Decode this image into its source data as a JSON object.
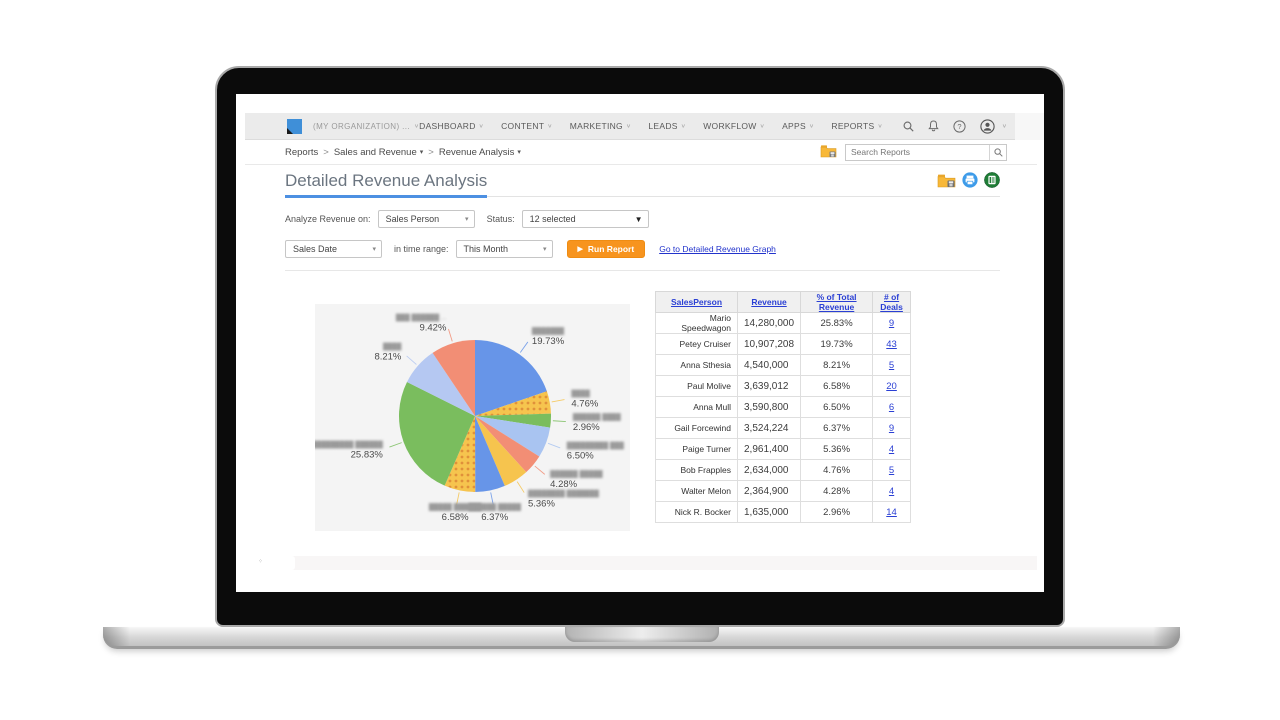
{
  "nav": {
    "org_label": "(MY ORGANIZATION) ...",
    "menu": [
      {
        "label": "DASHBOARD"
      },
      {
        "label": "CONTENT"
      },
      {
        "label": "MARKETING"
      },
      {
        "label": "LEADS"
      },
      {
        "label": "WORKFLOW"
      },
      {
        "label": "APPS"
      },
      {
        "label": "REPORTS"
      }
    ],
    "help_glyph": "?"
  },
  "breadcrumb": {
    "separator": ">",
    "items": [
      {
        "label": "Reports",
        "caret": false
      },
      {
        "label": "Sales and Revenue",
        "caret": true
      },
      {
        "label": "Revenue Analysis",
        "caret": true
      }
    ]
  },
  "search": {
    "placeholder": "Search Reports"
  },
  "page": {
    "title": "Detailed Revenue Analysis"
  },
  "filters": {
    "analyze_label": "Analyze Revenue on:",
    "analyze_value": "Sales Person",
    "status_label": "Status:",
    "status_value": "12 selected",
    "date_field_value": "Sales Date",
    "range_label": "in time range:",
    "range_value": "This Month",
    "run_button": "Run Report",
    "graph_link": "Go to Detailed Revenue Graph"
  },
  "chart_data": {
    "type": "pie",
    "unit": "%",
    "start_angle_deg": -90,
    "direction": "clockwise",
    "legend": "none",
    "slices": [
      {
        "label_blurred": "███████",
        "value": 19.73,
        "color": "#6795e8",
        "pattern": false
      },
      {
        "label_blurred": "████",
        "value": 4.76,
        "color": "#f6c44e",
        "pattern": true
      },
      {
        "label_blurred": "██████ ████",
        "value": 2.96,
        "color": "#7abd5e",
        "pattern": false
      },
      {
        "label_blurred": "█████████ ███",
        "value": 6.5,
        "color": "#a9c4f1",
        "pattern": false
      },
      {
        "label_blurred": "██████ █████",
        "value": 4.28,
        "color": "#f28e75",
        "pattern": false
      },
      {
        "label_blurred": "████████ ███████",
        "value": 5.36,
        "color": "#f6c44e",
        "pattern": false
      },
      {
        "label_blurred": "██████ █████",
        "value": 6.37,
        "color": "#6795e8",
        "pattern": false
      },
      {
        "label_blurred": "█████ ██████",
        "value": 6.58,
        "color": "#f6c44e",
        "pattern": true
      },
      {
        "label_blurred": "██████████ ██████",
        "value": 25.83,
        "color": "#7abd5e",
        "pattern": false
      },
      {
        "label_blurred": "████",
        "value": 8.21,
        "color": "#b5c8f2",
        "pattern": false
      },
      {
        "label_blurred": "███ ██████ ...",
        "value": 9.42,
        "color": "#f28e75",
        "pattern": false
      }
    ]
  },
  "table": {
    "headers": [
      "SalesPerson",
      "Revenue",
      "% of Total Revenue",
      "# of Deals"
    ],
    "rows": [
      [
        "Mario Speedwagon",
        "14,280,000",
        "25.83%",
        "9"
      ],
      [
        "Petey Cruiser",
        "10,907,208",
        "19.73%",
        "43"
      ],
      [
        "Anna Sthesia",
        "4,540,000",
        "8.21%",
        "5"
      ],
      [
        "Paul Molive",
        "3,639,012",
        "6.58%",
        "20"
      ],
      [
        "Anna Mull",
        "3,590,800",
        "6.50%",
        "6"
      ],
      [
        "Gail Forcewind",
        "3,524,224",
        "6.37%",
        "9"
      ],
      [
        "Paige Turner",
        "2,961,400",
        "5.36%",
        "4"
      ],
      [
        "Bob Frapples",
        "2,634,000",
        "4.76%",
        "5"
      ],
      [
        "Walter Melon",
        "2,364,900",
        "4.28%",
        "4"
      ],
      [
        "Nick R. Bocker",
        "1,635,000",
        "2.96%",
        "14"
      ]
    ]
  },
  "colors": {
    "accent_orange": "#f7941e",
    "link_blue": "#2a3fd4",
    "title_underline": "#4d90e2",
    "nav_bg": "#ebebeb"
  }
}
